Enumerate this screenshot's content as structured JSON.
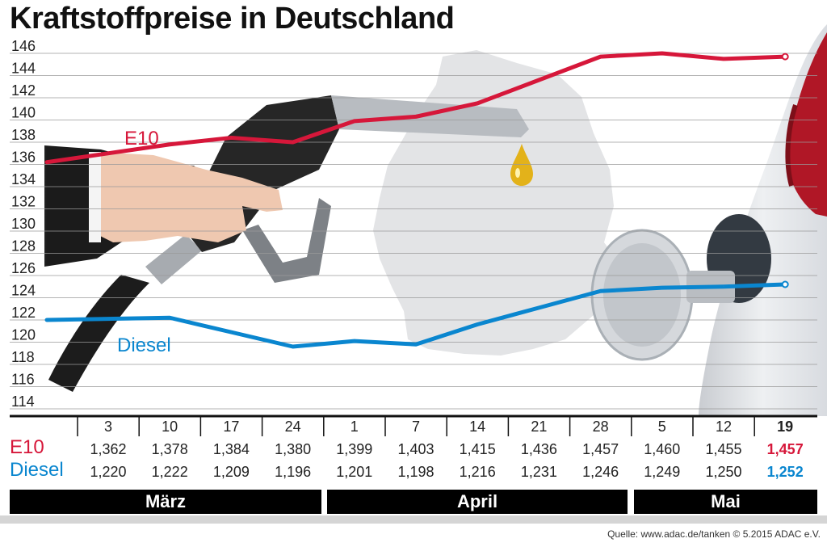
{
  "title": "Kraftstoffpreise in Deutschland",
  "source": "Quelle: www.adac.de/tanken   © 5.2015  ADAC e.V.",
  "colors": {
    "e10": "#d6173a",
    "diesel": "#0a86cf",
    "grid": "#9a9a9a",
    "band": "#000000"
  },
  "labels": {
    "e10": "E10",
    "diesel": "Diesel"
  },
  "months": [
    "März",
    "April",
    "Mai"
  ],
  "chart_data": {
    "type": "line",
    "ylim": [
      114,
      146
    ],
    "yticks": [
      "114",
      "116",
      "118",
      "120",
      "122",
      "124",
      "126",
      "128",
      "130",
      "132",
      "134",
      "136",
      "138",
      "140",
      "142",
      "144",
      "146"
    ],
    "x": [
      "3",
      "10",
      "17",
      "24",
      "1",
      "7",
      "14",
      "21",
      "28",
      "5",
      "12",
      "19"
    ],
    "series": [
      {
        "name": "E10",
        "color": "#d6173a",
        "values": [
          136.2,
          137.8,
          138.4,
          138.0,
          139.9,
          140.3,
          141.5,
          143.6,
          145.7,
          146.0,
          145.5,
          145.7
        ],
        "table": [
          "1,362",
          "1,378",
          "1,384",
          "1,380",
          "1,399",
          "1,403",
          "1,415",
          "1,436",
          "1,457",
          "1,460",
          "1,455",
          "1,457"
        ]
      },
      {
        "name": "Diesel",
        "color": "#0a86cf",
        "values": [
          122.0,
          122.2,
          120.9,
          119.6,
          120.1,
          119.8,
          121.6,
          123.1,
          124.6,
          124.9,
          125.0,
          125.2
        ],
        "table": [
          "1,220",
          "1,222",
          "1,209",
          "1,196",
          "1,201",
          "1,198",
          "1,216",
          "1,231",
          "1,246",
          "1,249",
          "1,250",
          "1,252"
        ]
      }
    ]
  }
}
